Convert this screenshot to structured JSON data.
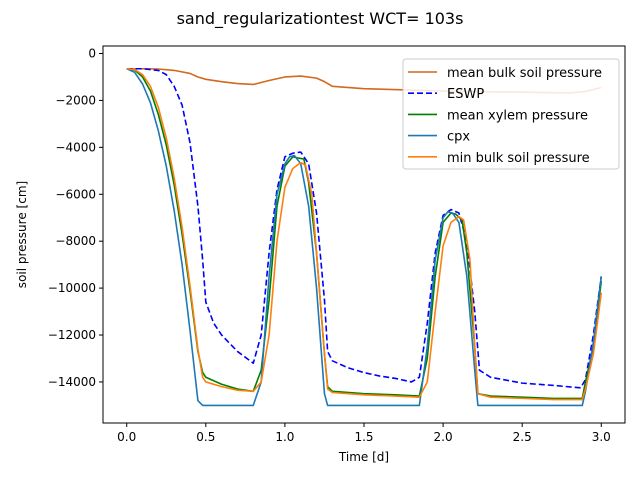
{
  "chart_data": {
    "type": "line",
    "title": "sand_regularizationtest  WCT= 103s",
    "xlabel": "Time [d]",
    "ylabel": "soil pressure [cm]",
    "xlim": [
      -0.15,
      3.15
    ],
    "ylim": [
      -15750,
      320
    ],
    "xticks": [
      0.0,
      0.5,
      1.0,
      1.5,
      2.0,
      2.5,
      3.0
    ],
    "xtick_labels": [
      "0.0",
      "0.5",
      "1.0",
      "1.5",
      "2.0",
      "2.5",
      "3.0"
    ],
    "yticks": [
      0,
      -2000,
      -4000,
      -6000,
      -8000,
      -10000,
      -12000,
      -14000
    ],
    "ytick_labels": [
      "0",
      "−2000",
      "−4000",
      "−6000",
      "−8000",
      "−10000",
      "−12000",
      "−14000"
    ],
    "grid": false,
    "legend_position": "top-right",
    "series": [
      {
        "name": "mean bulk soil pressure",
        "color": "#d2691e",
        "dash": "solid",
        "x": [
          0,
          0.1,
          0.2,
          0.3,
          0.4,
          0.45,
          0.5,
          0.6,
          0.7,
          0.8,
          0.9,
          1.0,
          1.1,
          1.2,
          1.25,
          1.3,
          1.5,
          1.8,
          2.0,
          2.2,
          2.5,
          2.8,
          2.9,
          3.0
        ],
        "y": [
          -650,
          -650,
          -660,
          -720,
          -850,
          -1000,
          -1100,
          -1200,
          -1280,
          -1320,
          -1150,
          -1000,
          -960,
          -1050,
          -1200,
          -1400,
          -1500,
          -1560,
          -1600,
          -1620,
          -1650,
          -1680,
          -1620,
          -1450
        ]
      },
      {
        "name": "ESWP",
        "color": "#0000ff",
        "dash": "dashed",
        "x": [
          0,
          0.1,
          0.2,
          0.25,
          0.3,
          0.35,
          0.4,
          0.45,
          0.48,
          0.5,
          0.55,
          0.6,
          0.7,
          0.8,
          0.85,
          0.9,
          0.95,
          1.0,
          1.05,
          1.1,
          1.15,
          1.2,
          1.25,
          1.27,
          1.3,
          1.4,
          1.5,
          1.6,
          1.7,
          1.8,
          1.85,
          1.9,
          1.95,
          2.0,
          2.05,
          2.1,
          2.15,
          2.2,
          2.23,
          2.3,
          2.5,
          2.7,
          2.87,
          2.9,
          2.95,
          3.0
        ],
        "y": [
          -650,
          -650,
          -720,
          -900,
          -1400,
          -2200,
          -3800,
          -6500,
          -8800,
          -10600,
          -11500,
          -12000,
          -12700,
          -13200,
          -12000,
          -8500,
          -5800,
          -4400,
          -4250,
          -4200,
          -4700,
          -6800,
          -10500,
          -12700,
          -13100,
          -13400,
          -13600,
          -13750,
          -13850,
          -14000,
          -13800,
          -11500,
          -8500,
          -6900,
          -6650,
          -6800,
          -8000,
          -11000,
          -13500,
          -13800,
          -14050,
          -14150,
          -14250,
          -13900,
          -12000,
          -9500
        ]
      },
      {
        "name": "mean xylem pressure",
        "color": "#008000",
        "dash": "solid",
        "x": [
          0,
          0.05,
          0.1,
          0.15,
          0.2,
          0.25,
          0.3,
          0.35,
          0.4,
          0.45,
          0.48,
          0.5,
          0.6,
          0.7,
          0.8,
          0.85,
          0.9,
          0.95,
          1.0,
          1.05,
          1.08,
          1.12,
          1.15,
          1.2,
          1.25,
          1.27,
          1.3,
          1.5,
          1.7,
          1.85,
          1.9,
          1.95,
          2.0,
          2.05,
          2.08,
          2.12,
          2.15,
          2.2,
          2.22,
          2.3,
          2.5,
          2.7,
          2.88,
          2.9,
          2.95,
          3.0
        ],
        "y": [
          -650,
          -700,
          -1000,
          -1600,
          -2600,
          -3900,
          -5600,
          -7700,
          -10100,
          -12700,
          -13600,
          -13800,
          -14100,
          -14300,
          -14400,
          -13500,
          -10500,
          -6500,
          -4800,
          -4400,
          -4450,
          -4500,
          -5500,
          -8500,
          -12800,
          -14200,
          -14400,
          -14500,
          -14550,
          -14600,
          -13000,
          -9500,
          -7200,
          -6800,
          -6850,
          -7100,
          -8500,
          -12500,
          -14500,
          -14600,
          -14650,
          -14700,
          -14700,
          -14000,
          -12500,
          -9700
        ]
      },
      {
        "name": "cpx",
        "color": "#1f77b4",
        "dash": "solid",
        "x": [
          0,
          0.05,
          0.1,
          0.15,
          0.2,
          0.25,
          0.3,
          0.35,
          0.4,
          0.45,
          0.48,
          0.55,
          0.7,
          0.8,
          0.85,
          0.9,
          0.95,
          1.0,
          1.03,
          1.06,
          1.1,
          1.15,
          1.2,
          1.25,
          1.27,
          1.3,
          1.5,
          1.7,
          1.85,
          1.9,
          1.95,
          2.0,
          2.03,
          2.06,
          2.1,
          2.15,
          2.2,
          2.22,
          2.3,
          2.5,
          2.7,
          2.88,
          2.9,
          2.95,
          3.0
        ],
        "y": [
          -650,
          -800,
          -1300,
          -2100,
          -3300,
          -4800,
          -6700,
          -9000,
          -11800,
          -14800,
          -15000,
          -15000,
          -15000,
          -15000,
          -14000,
          -9500,
          -6000,
          -4700,
          -4400,
          -4350,
          -4700,
          -6500,
          -10000,
          -14500,
          -15000,
          -15000,
          -15000,
          -15000,
          -15000,
          -12500,
          -8800,
          -7000,
          -6750,
          -6800,
          -7200,
          -9500,
          -13500,
          -15000,
          -15000,
          -15000,
          -15000,
          -15000,
          -14400,
          -12300,
          -9500
        ]
      },
      {
        "name": "min bulk soil pressure",
        "color": "#ff7f0e",
        "dash": "solid",
        "x": [
          0,
          0.05,
          0.1,
          0.15,
          0.2,
          0.25,
          0.3,
          0.35,
          0.4,
          0.45,
          0.48,
          0.5,
          0.6,
          0.7,
          0.8,
          0.85,
          0.9,
          0.95,
          1.0,
          1.05,
          1.1,
          1.13,
          1.17,
          1.2,
          1.25,
          1.27,
          1.3,
          1.5,
          1.7,
          1.85,
          1.9,
          1.95,
          2.0,
          2.05,
          2.1,
          2.13,
          2.17,
          2.2,
          2.22,
          2.3,
          2.5,
          2.7,
          2.88,
          2.9,
          2.95,
          3.0
        ],
        "y": [
          -650,
          -680,
          -900,
          -1400,
          -2300,
          -3600,
          -5300,
          -7400,
          -9900,
          -12600,
          -13800,
          -14000,
          -14200,
          -14350,
          -14400,
          -14000,
          -12000,
          -8000,
          -5700,
          -4900,
          -4650,
          -4750,
          -6000,
          -8500,
          -12800,
          -14300,
          -14450,
          -14550,
          -14600,
          -14650,
          -14000,
          -11000,
          -8200,
          -7200,
          -6950,
          -7100,
          -8800,
          -12500,
          -14500,
          -14650,
          -14700,
          -14750,
          -14750,
          -14300,
          -12800,
          -10200
        ]
      }
    ]
  }
}
